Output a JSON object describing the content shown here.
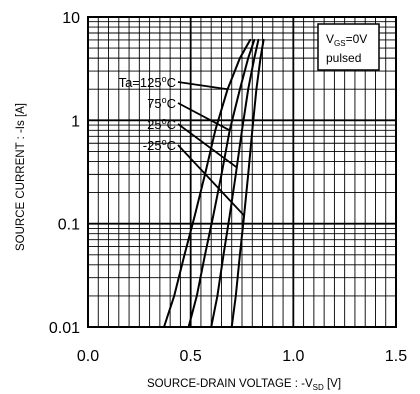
{
  "chart_data": {
    "type": "line",
    "xlabel": "SOURCE-DRAIN VOLTAGE : -V",
    "xlabel_sub": "SD",
    "xlabel_unit": " [V]",
    "ylabel": "SOURCE CURRENT : -Is [A]",
    "x_scale": "linear",
    "y_scale": "log",
    "xlim": [
      0.0,
      1.5
    ],
    "ylim": [
      0.01,
      10
    ],
    "x_ticks": [
      0.0,
      0.5,
      1.0,
      1.5
    ],
    "x_tick_labels": [
      "0.0",
      "0.5",
      "1.0",
      "1.5"
    ],
    "y_ticks": [
      0.01,
      0.1,
      1,
      10
    ],
    "y_tick_labels": [
      "0.01",
      "0.1",
      "1",
      "10"
    ],
    "grid": true,
    "legend_box": {
      "line1_main": "V",
      "line1_sub": "GS",
      "line1_tail": "=0V",
      "line2": "pulsed",
      "placement": "top-right"
    },
    "series": [
      {
        "name": "Ta=125",
        "label_main": "Ta=125",
        "label_unit": "C",
        "x": [
          0.37,
          0.42,
          0.47,
          0.52,
          0.57,
          0.62,
          0.68,
          0.74,
          0.79
        ],
        "y": [
          0.01,
          0.02,
          0.05,
          0.12,
          0.3,
          0.8,
          2.0,
          4.0,
          6.0
        ]
      },
      {
        "name": "75",
        "label_main": "75",
        "label_unit": "C",
        "x": [
          0.49,
          0.53,
          0.57,
          0.61,
          0.65,
          0.69,
          0.74,
          0.78,
          0.81
        ],
        "y": [
          0.01,
          0.02,
          0.05,
          0.12,
          0.3,
          0.8,
          2.0,
          4.0,
          6.0
        ]
      },
      {
        "name": "25",
        "label_main": "25",
        "label_unit": "C",
        "x": [
          0.6,
          0.63,
          0.66,
          0.69,
          0.72,
          0.75,
          0.78,
          0.81,
          0.83
        ],
        "y": [
          0.01,
          0.02,
          0.05,
          0.12,
          0.3,
          0.8,
          2.0,
          4.0,
          6.0
        ]
      },
      {
        "name": "-25",
        "label_main": "-25",
        "label_unit": "C",
        "x": [
          0.7,
          0.72,
          0.74,
          0.76,
          0.78,
          0.8,
          0.82,
          0.84,
          0.855
        ],
        "y": [
          0.01,
          0.02,
          0.05,
          0.12,
          0.3,
          0.8,
          2.0,
          4.0,
          6.0
        ]
      }
    ]
  }
}
